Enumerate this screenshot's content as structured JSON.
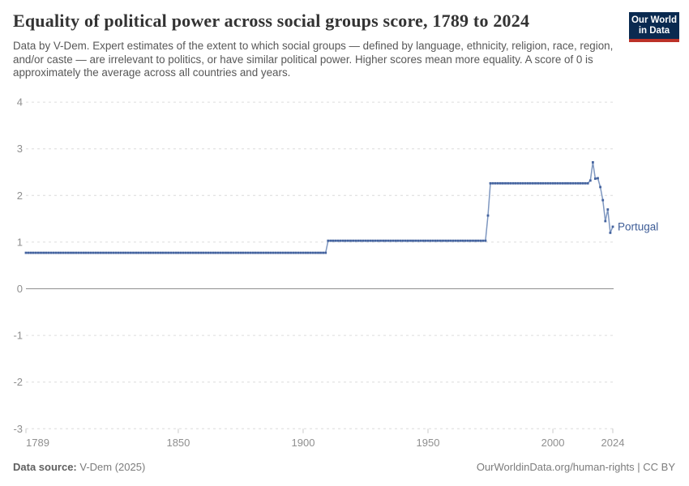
{
  "header": {
    "title": "Equality of political power across social groups score, 1789 to 2024",
    "subtitle": "Data by V-Dem. Expert estimates of the extent to which social groups — defined by language, ethnicity, religion, race, region, and/or caste — are irrelevant to politics, or have similar political power. Higher scores mean more equality. A score of 0 is approximately the average across all countries and years."
  },
  "logo": {
    "line1": "Our World",
    "line2": "in Data",
    "bg_color": "#0a2a50",
    "bar_color": "#bc3228"
  },
  "footer": {
    "source_label": "Data source:",
    "source_value": "V-Dem (2025)",
    "right_text": "OurWorldinData.org/human-rights | CC BY"
  },
  "chart_data": {
    "type": "line",
    "title": "Equality of political power across social groups score, 1789 to 2024",
    "xlabel": "",
    "ylabel": "",
    "xlim": [
      1789,
      2024
    ],
    "ylim": [
      -3,
      4
    ],
    "x_ticks": [
      1789,
      1850,
      1900,
      1950,
      2000,
      2024
    ],
    "y_ticks": [
      4,
      3,
      2,
      1,
      0,
      -1,
      -2,
      -3
    ],
    "grid": "horizontal-dashed",
    "zero_line": "solid",
    "legend_position": "end-of-line-label",
    "colors": {
      "axis_label": "#8f8f8f",
      "grid_line": "#dcdcdc",
      "zero_line_color": "#8f8f8f",
      "tick_mark": "#c9c9c9"
    },
    "series": [
      {
        "name": "Portugal",
        "line_color": "#7e97c0",
        "marker_color": "#44639f",
        "label_color": "#3d5c96",
        "sampling": "annual",
        "step_points": [
          [
            1789,
            0.77
          ],
          [
            1910,
            1.03
          ],
          [
            1974,
            1.57
          ],
          [
            1975,
            2.26
          ],
          [
            2015,
            2.32
          ],
          [
            2016,
            2.71
          ],
          [
            2017,
            2.36
          ],
          [
            2018,
            2.37
          ],
          [
            2019,
            2.18
          ],
          [
            2020,
            1.9
          ],
          [
            2021,
            1.45
          ],
          [
            2022,
            1.7
          ],
          [
            2023,
            1.2
          ],
          [
            2024,
            1.33
          ]
        ]
      }
    ]
  }
}
